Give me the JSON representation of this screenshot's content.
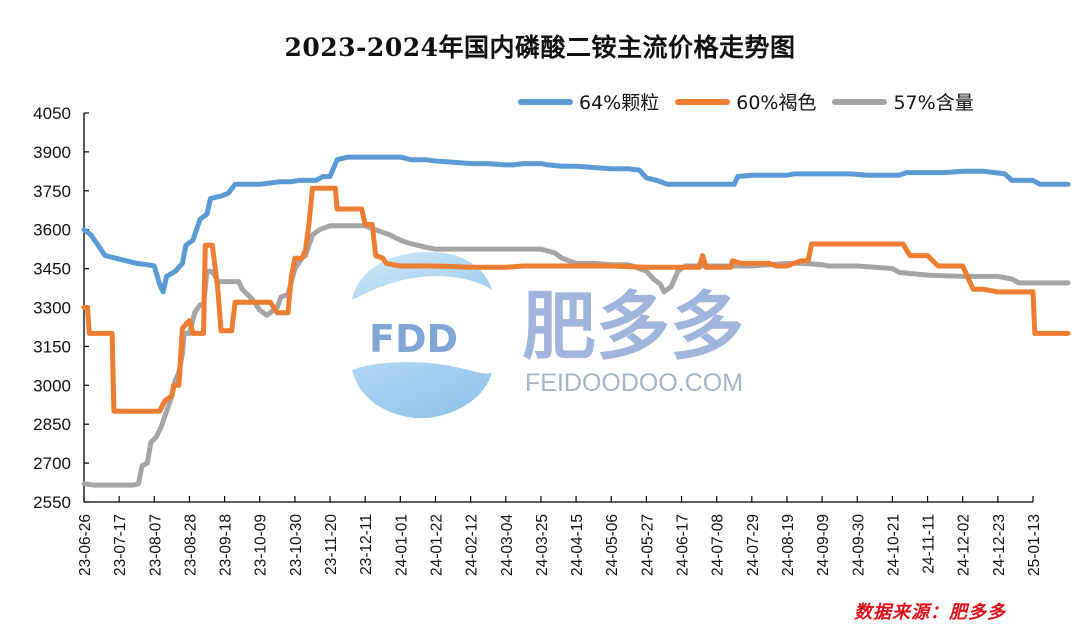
{
  "chart_data": {
    "type": "line",
    "title": "2023-2024年国内磷酸二铵主流价格走势图",
    "xlabel": "",
    "ylabel": "",
    "ylim": [
      2550,
      4050
    ],
    "yticks": [
      4050,
      3900,
      3750,
      3600,
      3450,
      3300,
      3150,
      3000,
      2850,
      2700,
      2550
    ],
    "grid": false,
    "legend_position": "top-right",
    "categories": [
      "23-06-26",
      "23-07-17",
      "23-08-07",
      "23-08-28",
      "23-09-18",
      "23-10-09",
      "23-10-30",
      "23-11-20",
      "23-12-11",
      "24-01-01",
      "24-01-22",
      "24-02-12",
      "24-03-04",
      "24-03-25",
      "24-04-15",
      "24-05-06",
      "24-05-27",
      "24-06-17",
      "24-07-08",
      "24-07-29",
      "24-08-19",
      "24-09-09",
      "24-09-30",
      "24-10-21",
      "24-11-11",
      "24-12-02",
      "24-12-23",
      "25-01-13"
    ],
    "series": [
      {
        "name": "64%颗粒",
        "color": "#5b9bd5",
        "points": [
          [
            0,
            3600
          ],
          [
            0.2,
            3580
          ],
          [
            0.4,
            3540
          ],
          [
            0.6,
            3500
          ],
          [
            0.9,
            3490
          ],
          [
            1.2,
            3480
          ],
          [
            1.5,
            3470
          ],
          [
            1.8,
            3465
          ],
          [
            2.0,
            3460
          ],
          [
            2.15,
            3390
          ],
          [
            2.25,
            3360
          ],
          [
            2.35,
            3420
          ],
          [
            2.6,
            3440
          ],
          [
            2.8,
            3470
          ],
          [
            2.9,
            3540
          ],
          [
            3.1,
            3560
          ],
          [
            3.3,
            3640
          ],
          [
            3.5,
            3660
          ],
          [
            3.6,
            3720
          ],
          [
            3.9,
            3730
          ],
          [
            4.1,
            3740
          ],
          [
            4.3,
            3775
          ],
          [
            5.0,
            3775
          ],
          [
            5.3,
            3780
          ],
          [
            5.6,
            3785
          ],
          [
            5.9,
            3785
          ],
          [
            6.1,
            3790
          ],
          [
            6.4,
            3790
          ],
          [
            6.6,
            3790
          ],
          [
            6.8,
            3805
          ],
          [
            7.0,
            3805
          ],
          [
            7.2,
            3870
          ],
          [
            7.5,
            3880
          ],
          [
            8.0,
            3880
          ],
          [
            8.5,
            3880
          ],
          [
            9.0,
            3880
          ],
          [
            9.3,
            3870
          ],
          [
            9.7,
            3870
          ],
          [
            10.0,
            3865
          ],
          [
            10.5,
            3860
          ],
          [
            11.0,
            3855
          ],
          [
            11.5,
            3855
          ],
          [
            12.0,
            3850
          ],
          [
            12.2,
            3850
          ],
          [
            12.5,
            3855
          ],
          [
            13.0,
            3855
          ],
          [
            13.2,
            3850
          ],
          [
            13.6,
            3845
          ],
          [
            14.0,
            3845
          ],
          [
            14.5,
            3840
          ],
          [
            15.0,
            3835
          ],
          [
            15.5,
            3835
          ],
          [
            15.8,
            3830
          ],
          [
            16.0,
            3800
          ],
          [
            16.3,
            3790
          ],
          [
            16.6,
            3775
          ],
          [
            17.0,
            3775
          ],
          [
            17.5,
            3775
          ],
          [
            18.0,
            3775
          ],
          [
            18.5,
            3775
          ],
          [
            18.6,
            3805
          ],
          [
            19.0,
            3810
          ],
          [
            19.5,
            3810
          ],
          [
            20.0,
            3810
          ],
          [
            20.2,
            3815
          ],
          [
            21.0,
            3815
          ],
          [
            21.8,
            3815
          ],
          [
            22.3,
            3810
          ],
          [
            22.8,
            3810
          ],
          [
            23.2,
            3810
          ],
          [
            23.4,
            3820
          ],
          [
            24.0,
            3820
          ],
          [
            24.5,
            3820
          ],
          [
            25.0,
            3825
          ],
          [
            25.6,
            3825
          ],
          [
            25.9,
            3820
          ],
          [
            26.2,
            3815
          ],
          [
            26.4,
            3790
          ],
          [
            26.8,
            3790
          ],
          [
            27.0,
            3790
          ],
          [
            27.2,
            3775
          ],
          [
            28.0,
            3775
          ]
        ]
      },
      {
        "name": "60%褐色",
        "color": "#ed7d31",
        "points": [
          [
            0,
            3300
          ],
          [
            0.1,
            3300
          ],
          [
            0.15,
            3200
          ],
          [
            0.8,
            3200
          ],
          [
            0.85,
            2900
          ],
          [
            1.0,
            2900
          ],
          [
            2.0,
            2900
          ],
          [
            2.15,
            2900
          ],
          [
            2.3,
            2940
          ],
          [
            2.5,
            2960
          ],
          [
            2.55,
            3000
          ],
          [
            2.7,
            3000
          ],
          [
            2.8,
            3220
          ],
          [
            3.0,
            3250
          ],
          [
            3.1,
            3200
          ],
          [
            3.4,
            3200
          ],
          [
            3.45,
            3540
          ],
          [
            3.65,
            3540
          ],
          [
            3.8,
            3380
          ],
          [
            3.9,
            3210
          ],
          [
            4.2,
            3210
          ],
          [
            4.3,
            3320
          ],
          [
            5.0,
            3320
          ],
          [
            5.3,
            3320
          ],
          [
            5.5,
            3280
          ],
          [
            5.8,
            3280
          ],
          [
            5.9,
            3420
          ],
          [
            6.0,
            3490
          ],
          [
            6.2,
            3490
          ],
          [
            6.3,
            3520
          ],
          [
            6.4,
            3620
          ],
          [
            6.5,
            3760
          ],
          [
            7.0,
            3760
          ],
          [
            7.15,
            3760
          ],
          [
            7.2,
            3680
          ],
          [
            7.9,
            3680
          ],
          [
            8.0,
            3620
          ],
          [
            8.2,
            3620
          ],
          [
            8.3,
            3500
          ],
          [
            8.5,
            3490
          ],
          [
            8.6,
            3470
          ],
          [
            9.0,
            3460
          ],
          [
            10.0,
            3460
          ],
          [
            11.0,
            3455
          ],
          [
            12.0,
            3455
          ],
          [
            12.5,
            3460
          ],
          [
            13.0,
            3460
          ],
          [
            14.0,
            3460
          ],
          [
            15.0,
            3460
          ],
          [
            16.0,
            3455
          ],
          [
            17.0,
            3455
          ],
          [
            17.5,
            3455
          ],
          [
            17.6,
            3500
          ],
          [
            17.7,
            3455
          ],
          [
            18.0,
            3455
          ],
          [
            18.4,
            3455
          ],
          [
            18.45,
            3480
          ],
          [
            18.7,
            3470
          ],
          [
            19.0,
            3470
          ],
          [
            19.5,
            3470
          ],
          [
            19.7,
            3460
          ],
          [
            20.0,
            3460
          ],
          [
            20.4,
            3480
          ],
          [
            20.6,
            3480
          ],
          [
            20.7,
            3545
          ],
          [
            21.0,
            3545
          ],
          [
            22.0,
            3545
          ],
          [
            23.0,
            3545
          ],
          [
            23.3,
            3545
          ],
          [
            23.5,
            3500
          ],
          [
            24.0,
            3500
          ],
          [
            24.3,
            3460
          ],
          [
            25.0,
            3460
          ],
          [
            25.2,
            3400
          ],
          [
            25.3,
            3370
          ],
          [
            25.6,
            3370
          ],
          [
            26.0,
            3360
          ],
          [
            26.5,
            3360
          ],
          [
            27.0,
            3360
          ],
          [
            27.05,
            3200
          ],
          [
            28.0,
            3200
          ]
        ]
      },
      {
        "name": "57%含量",
        "color": "#a5a5a5",
        "points": [
          [
            0,
            2620
          ],
          [
            0.3,
            2615
          ],
          [
            1.0,
            2615
          ],
          [
            1.4,
            2615
          ],
          [
            1.55,
            2620
          ],
          [
            1.65,
            2690
          ],
          [
            1.8,
            2700
          ],
          [
            1.9,
            2780
          ],
          [
            2.05,
            2800
          ],
          [
            2.2,
            2840
          ],
          [
            2.35,
            2900
          ],
          [
            2.5,
            2960
          ],
          [
            2.6,
            3020
          ],
          [
            2.7,
            3050
          ],
          [
            2.8,
            3120
          ],
          [
            2.85,
            3200
          ],
          [
            3.0,
            3200
          ],
          [
            3.15,
            3280
          ],
          [
            3.3,
            3310
          ],
          [
            3.4,
            3310
          ],
          [
            3.5,
            3440
          ],
          [
            3.6,
            3440
          ],
          [
            3.7,
            3430
          ],
          [
            3.8,
            3400
          ],
          [
            4.0,
            3400
          ],
          [
            4.4,
            3400
          ],
          [
            4.5,
            3370
          ],
          [
            4.8,
            3330
          ],
          [
            5.0,
            3290
          ],
          [
            5.2,
            3270
          ],
          [
            5.4,
            3290
          ],
          [
            5.5,
            3300
          ],
          [
            5.6,
            3340
          ],
          [
            5.8,
            3350
          ],
          [
            5.9,
            3400
          ],
          [
            6.0,
            3450
          ],
          [
            6.2,
            3490
          ],
          [
            6.3,
            3500
          ],
          [
            6.5,
            3580
          ],
          [
            6.7,
            3600
          ],
          [
            7.0,
            3615
          ],
          [
            8.0,
            3615
          ],
          [
            8.3,
            3600
          ],
          [
            8.7,
            3580
          ],
          [
            9.0,
            3560
          ],
          [
            9.2,
            3550
          ],
          [
            9.5,
            3540
          ],
          [
            9.8,
            3530
          ],
          [
            10.0,
            3525
          ],
          [
            10.5,
            3525
          ],
          [
            11.0,
            3525
          ],
          [
            12.0,
            3525
          ],
          [
            12.5,
            3525
          ],
          [
            13.0,
            3525
          ],
          [
            13.4,
            3510
          ],
          [
            13.6,
            3490
          ],
          [
            14.0,
            3470
          ],
          [
            14.5,
            3470
          ],
          [
            15.0,
            3465
          ],
          [
            15.5,
            3465
          ],
          [
            15.8,
            3450
          ],
          [
            16.0,
            3440
          ],
          [
            16.2,
            3410
          ],
          [
            16.4,
            3390
          ],
          [
            16.5,
            3360
          ],
          [
            16.7,
            3380
          ],
          [
            16.9,
            3440
          ],
          [
            17.1,
            3460
          ],
          [
            17.5,
            3460
          ],
          [
            18.0,
            3460
          ],
          [
            18.5,
            3460
          ],
          [
            19.0,
            3460
          ],
          [
            19.5,
            3465
          ],
          [
            20.0,
            3470
          ],
          [
            20.5,
            3470
          ],
          [
            21.0,
            3465
          ],
          [
            21.2,
            3460
          ],
          [
            22.0,
            3460
          ],
          [
            22.5,
            3455
          ],
          [
            23.0,
            3450
          ],
          [
            23.2,
            3435
          ],
          [
            24.0,
            3425
          ],
          [
            25.0,
            3420
          ],
          [
            25.5,
            3420
          ],
          [
            26.0,
            3420
          ],
          [
            26.4,
            3410
          ],
          [
            26.6,
            3395
          ],
          [
            27.0,
            3395
          ],
          [
            28.0,
            3395
          ]
        ]
      }
    ]
  },
  "legend": [
    {
      "label": "64%颗粒",
      "color": "#5b9bd5"
    },
    {
      "label": "60%褐色",
      "color": "#ed7d31"
    },
    {
      "label": "57%含量",
      "color": "#a5a5a5"
    }
  ],
  "watermark": {
    "logo_text": "FDD",
    "brand_cn": "肥多多",
    "brand_en": "FEIDOODOO.COM"
  },
  "source_note": "数据来源：肥多多"
}
